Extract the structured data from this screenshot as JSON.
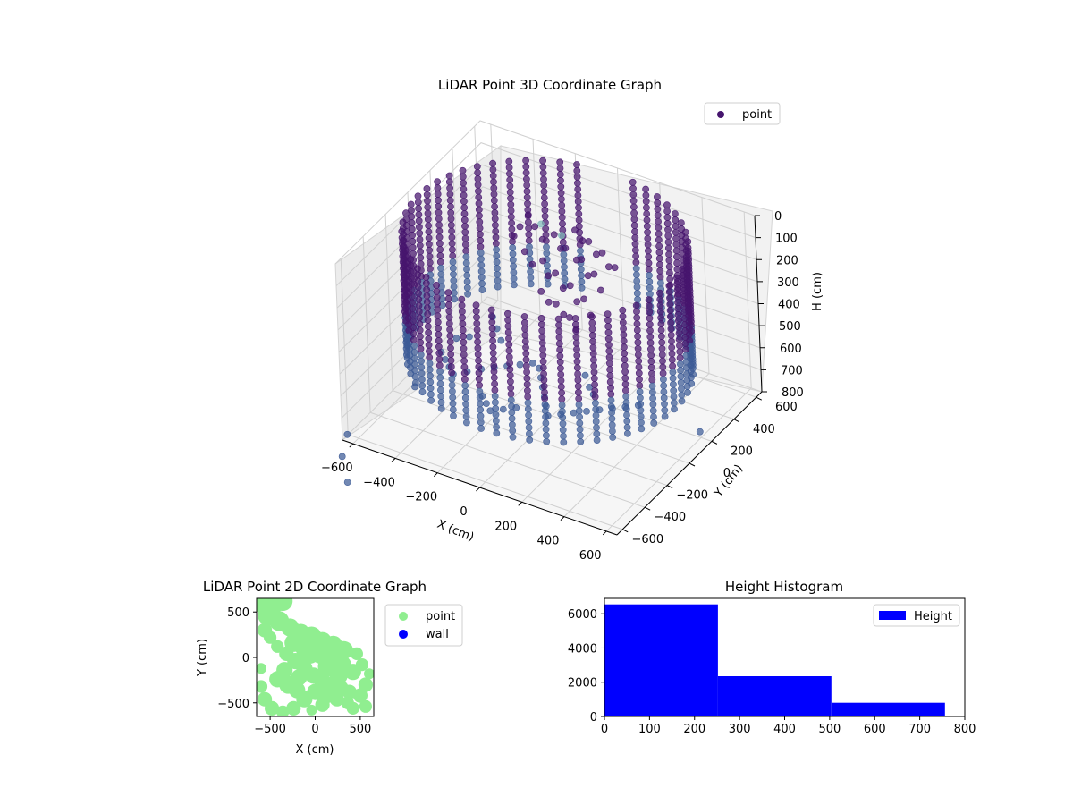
{
  "colors": {
    "point3d": "#46156e",
    "point3d_alt": "#3c5a96",
    "point3d_teal": "#7fb9b9",
    "point2d": "#90ee90",
    "wall2d": "#0000ff",
    "histogram": "#0000ff",
    "pane_back": "#f2f2f2",
    "pane_side": "#ececec",
    "pane_floor": "#f6f6f6"
  },
  "chart_data": [
    {
      "type": "scatter",
      "projection": "3d",
      "title": "LiDAR Point 3D Coordinate Graph",
      "xlabel": "X (cm)",
      "ylabel": "Y (cm)",
      "zlabel": "H (cm)",
      "x_ticks": [
        "−600",
        "−400",
        "−200",
        "0",
        "200",
        "400",
        "600"
      ],
      "y_ticks": [
        "−600",
        "−400",
        "−200",
        "0",
        "200",
        "400",
        "600"
      ],
      "z_ticks": [
        "0",
        "100",
        "200",
        "300",
        "400",
        "500",
        "600",
        "700",
        "800"
      ],
      "xlim": [
        -650,
        650
      ],
      "ylim": [
        -650,
        650
      ],
      "zlim": [
        0,
        800
      ],
      "z_inverted": true,
      "legend": {
        "entries": [
          "point"
        ],
        "placement": "top-right"
      },
      "grid": true,
      "structure": {
        "wall_ring": {
          "radius": 600,
          "arc_from_deg": 105,
          "arc_to_deg": 440,
          "column_count": 50,
          "h_min": 0,
          "h_max": 560,
          "h_step": 28
        },
        "cluster_points": [
          {
            "x": -180,
            "y": 240,
            "h": 120
          },
          {
            "x": -140,
            "y": 230,
            "h": 160
          },
          {
            "x": -100,
            "y": 260,
            "h": 140
          },
          {
            "x": -60,
            "y": 240,
            "h": 180
          },
          {
            "x": -20,
            "y": 210,
            "h": 150
          },
          {
            "x": 20,
            "y": 230,
            "h": 200
          },
          {
            "x": 60,
            "y": 200,
            "h": 170
          },
          {
            "x": 100,
            "y": 180,
            "h": 220
          },
          {
            "x": 140,
            "y": 160,
            "h": 190
          },
          {
            "x": 180,
            "y": 140,
            "h": 240
          },
          {
            "x": -200,
            "y": 180,
            "h": 210
          },
          {
            "x": -160,
            "y": 170,
            "h": 250
          },
          {
            "x": -120,
            "y": 190,
            "h": 230
          },
          {
            "x": -80,
            "y": 160,
            "h": 270
          },
          {
            "x": -40,
            "y": 150,
            "h": 240
          },
          {
            "x": 0,
            "y": 140,
            "h": 290
          },
          {
            "x": 40,
            "y": 130,
            "h": 260
          },
          {
            "x": 80,
            "y": 110,
            "h": 310
          },
          {
            "x": 120,
            "y": 100,
            "h": 280
          },
          {
            "x": 160,
            "y": 80,
            "h": 330
          },
          {
            "x": -220,
            "y": 260,
            "h": 90
          },
          {
            "x": -240,
            "y": 220,
            "h": 130
          },
          {
            "x": -260,
            "y": 200,
            "h": 170
          },
          {
            "x": -10,
            "y": 280,
            "h": 100
          },
          {
            "x": 30,
            "y": 270,
            "h": 130
          },
          {
            "x": 70,
            "y": 250,
            "h": 110
          },
          {
            "x": 110,
            "y": 240,
            "h": 150
          },
          {
            "x": 150,
            "y": 220,
            "h": 120
          },
          {
            "x": 190,
            "y": 200,
            "h": 160
          },
          {
            "x": 230,
            "y": 180,
            "h": 140
          },
          {
            "x": -90,
            "y": 110,
            "h": 320
          },
          {
            "x": -50,
            "y": 100,
            "h": 350
          },
          {
            "x": -10,
            "y": 90,
            "h": 340
          },
          {
            "x": 30,
            "y": 80,
            "h": 370
          },
          {
            "x": 70,
            "y": 60,
            "h": 360
          },
          {
            "x": 110,
            "y": 40,
            "h": 390
          }
        ],
        "floor_points": [
          {
            "x": -420,
            "y": -180,
            "h": 560
          },
          {
            "x": -380,
            "y": -220,
            "h": 560
          },
          {
            "x": -340,
            "y": -260,
            "h": 560
          },
          {
            "x": -300,
            "y": -300,
            "h": 560
          },
          {
            "x": -260,
            "y": -250,
            "h": 560
          },
          {
            "x": -220,
            "y": -200,
            "h": 560
          },
          {
            "x": -180,
            "y": -160,
            "h": 560
          },
          {
            "x": -140,
            "y": -120,
            "h": 560
          },
          {
            "x": -100,
            "y": -80,
            "h": 560
          },
          {
            "x": -60,
            "y": -40,
            "h": 560
          },
          {
            "x": -20,
            "y": -60,
            "h": 560
          },
          {
            "x": 20,
            "y": -120,
            "h": 560
          },
          {
            "x": 60,
            "y": -180,
            "h": 560
          },
          {
            "x": 100,
            "y": -240,
            "h": 560
          },
          {
            "x": 140,
            "y": -300,
            "h": 560
          },
          {
            "x": 180,
            "y": -360,
            "h": 560
          },
          {
            "x": 220,
            "y": -320,
            "h": 560
          },
          {
            "x": 260,
            "y": -280,
            "h": 560
          },
          {
            "x": 300,
            "y": -240,
            "h": 560
          },
          {
            "x": 340,
            "y": -200,
            "h": 560
          },
          {
            "x": 380,
            "y": -160,
            "h": 560
          },
          {
            "x": 420,
            "y": -120,
            "h": 560
          },
          {
            "x": 460,
            "y": -80,
            "h": 560
          },
          {
            "x": -300,
            "y": 60,
            "h": 480
          },
          {
            "x": -260,
            "y": 20,
            "h": 500
          },
          {
            "x": -220,
            "y": -20,
            "h": 520
          },
          {
            "x": 200,
            "y": -60,
            "h": 520
          },
          {
            "x": 240,
            "y": -100,
            "h": 540
          },
          {
            "x": 280,
            "y": -140,
            "h": 540
          },
          {
            "x": -120,
            "y": -380,
            "h": 560
          },
          {
            "x": -80,
            "y": -420,
            "h": 560
          },
          {
            "x": -40,
            "y": -460,
            "h": 560
          },
          {
            "x": 0,
            "y": -420,
            "h": 560
          },
          {
            "x": 40,
            "y": -380,
            "h": 560
          },
          {
            "x": -360,
            "y": -40,
            "h": 540
          },
          {
            "x": -400,
            "y": -80,
            "h": 540
          }
        ],
        "outlier_points": [
          {
            "x": -620,
            "y": -660,
            "h": 760
          },
          {
            "x": -560,
            "y": -820,
            "h": 760
          },
          {
            "x": -450,
            "y": -980,
            "h": 760
          },
          {
            "x": 640,
            "y": 120,
            "h": 720
          },
          {
            "x": -520,
            "y": -240,
            "h": 720
          },
          {
            "x": -200,
            "y": 330,
            "h": 160
          },
          {
            "x": -120,
            "y": 360,
            "h": 200
          }
        ]
      }
    },
    {
      "type": "scatter",
      "title": "LiDAR Point 2D Coordinate Graph",
      "xlabel": "X (cm)",
      "ylabel": "Y (cm)",
      "x_ticks": [
        "−500",
        "0",
        "500"
      ],
      "y_ticks": [
        "−500",
        "0",
        "500"
      ],
      "xlim": [
        -650,
        650
      ],
      "ylim": [
        -650,
        650
      ],
      "legend": {
        "entries": [
          "point",
          "wall"
        ],
        "placement": "outside right"
      },
      "series": [
        {
          "name": "point",
          "blobs": [
            [
              -620,
              620,
              120
            ],
            [
              -500,
              620,
              130
            ],
            [
              -360,
              620,
              110
            ],
            [
              -520,
              470,
              120
            ],
            [
              -400,
              400,
              110
            ],
            [
              -280,
              330,
              100
            ],
            [
              -160,
              270,
              100
            ],
            [
              -40,
              230,
              110
            ],
            [
              80,
              180,
              100
            ],
            [
              200,
              140,
              100
            ],
            [
              320,
              80,
              100
            ],
            [
              -460,
              560,
              90
            ],
            [
              -560,
              300,
              80
            ],
            [
              -500,
              220,
              70
            ],
            [
              -420,
              120,
              70
            ],
            [
              -320,
              40,
              80
            ],
            [
              -220,
              -40,
              90
            ],
            [
              -120,
              -120,
              90
            ],
            [
              -20,
              -200,
              90
            ],
            [
              80,
              -260,
              90
            ],
            [
              180,
              -300,
              90
            ],
            [
              280,
              -340,
              90
            ],
            [
              380,
              -380,
              80
            ],
            [
              -600,
              -120,
              60
            ],
            [
              -600,
              -320,
              70
            ],
            [
              -560,
              -460,
              80
            ],
            [
              -480,
              -560,
              80
            ],
            [
              -360,
              -600,
              70
            ],
            [
              -240,
              -560,
              80
            ],
            [
              -120,
              -460,
              90
            ],
            [
              0,
              -380,
              90
            ],
            [
              120,
              -420,
              90
            ],
            [
              240,
              -460,
              80
            ],
            [
              360,
              -500,
              70
            ],
            [
              500,
              -420,
              80
            ],
            [
              560,
              -300,
              80
            ],
            [
              600,
              -180,
              60
            ],
            [
              -420,
              -240,
              90
            ],
            [
              -300,
              -300,
              100
            ],
            [
              -180,
              -220,
              90
            ],
            [
              -60,
              40,
              110
            ],
            [
              60,
              40,
              110
            ],
            [
              180,
              20,
              110
            ],
            [
              300,
              -80,
              100
            ],
            [
              420,
              -160,
              90
            ],
            [
              520,
              -80,
              70
            ],
            [
              460,
              40,
              70
            ],
            [
              -240,
              160,
              100
            ],
            [
              -120,
              100,
              100
            ],
            [
              20,
              120,
              100
            ],
            [
              140,
              -100,
              110
            ],
            [
              260,
              -200,
              100
            ],
            [
              -340,
              -140,
              90
            ],
            [
              -200,
              -360,
              90
            ],
            [
              80,
              -520,
              80
            ],
            [
              -40,
              -580,
              60
            ],
            [
              420,
              -560,
              70
            ],
            [
              560,
              -540,
              70
            ]
          ]
        },
        {
          "name": "wall",
          "points": []
        }
      ]
    },
    {
      "type": "bar",
      "subtype": "histogram",
      "title": "Height Histogram",
      "bins": [
        [
          0,
          252
        ],
        [
          252,
          504
        ],
        [
          504,
          756
        ]
      ],
      "values": [
        6550,
        2350,
        800
      ],
      "x_ticks": [
        "0",
        "100",
        "200",
        "300",
        "400",
        "500",
        "600",
        "700",
        "800"
      ],
      "y_ticks": [
        "0",
        "2000",
        "4000",
        "6000"
      ],
      "xlim": [
        0,
        800
      ],
      "ylim": [
        0,
        6900
      ],
      "legend": {
        "entries": [
          "Height"
        ],
        "placement": "top-right"
      }
    }
  ]
}
